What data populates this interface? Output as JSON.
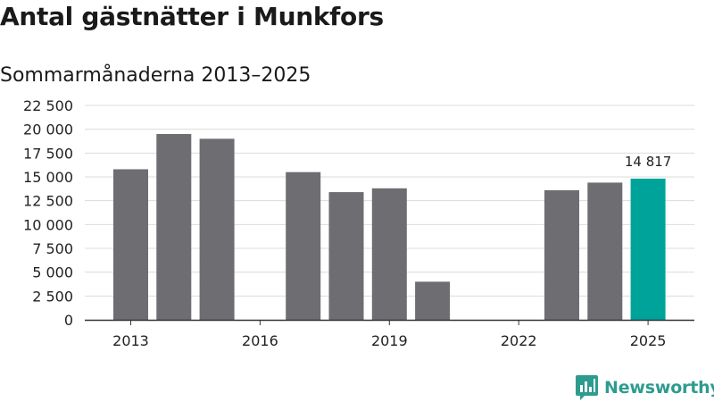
{
  "title": "Antal gästnätter i Munkfors",
  "subtitle": "Sommarmånaderna 2013–2025",
  "brand": {
    "name": "Newsworthy",
    "color": "#2d9c8f"
  },
  "colors": {
    "bar": "#6d6d72",
    "highlight": "#00a39a",
    "grid": "#dcdcdc",
    "axis": "#333333"
  },
  "chart_data": {
    "type": "bar",
    "categories": [
      "2013",
      "2014",
      "2015",
      "2016",
      "2017",
      "2018",
      "2019",
      "2020",
      "2021",
      "2022",
      "2023",
      "2024",
      "2025"
    ],
    "values": [
      15800,
      19500,
      19000,
      null,
      15500,
      13400,
      13800,
      4000,
      null,
      null,
      13600,
      14400,
      14817
    ],
    "x_tick_labels": [
      "2013",
      "2016",
      "2019",
      "2022",
      "2025"
    ],
    "y_ticks": [
      0,
      2500,
      5000,
      7500,
      10000,
      12500,
      15000,
      17500,
      20000,
      22500
    ],
    "y_tick_labels": [
      "0",
      "2 500",
      "5 000",
      "7 500",
      "10 000",
      "12 500",
      "15 000",
      "17 500",
      "20 000",
      "22 500"
    ],
    "ylim": [
      0,
      22500
    ],
    "highlight_category": "2025",
    "data_labels": [
      {
        "category": "2025",
        "text": "14 817"
      }
    ],
    "grid": true,
    "xlabel": "",
    "ylabel": ""
  }
}
